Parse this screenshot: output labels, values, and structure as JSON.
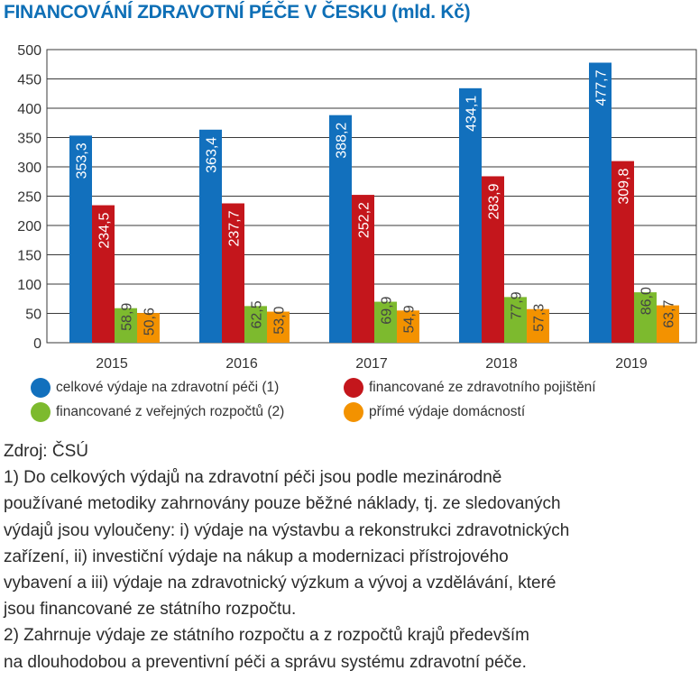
{
  "chart_data": {
    "type": "bar",
    "title": "FINANCOVÁNÍ ZDRAVOTNÍ PÉČE V ČESKU (mld. Kč)",
    "categories": [
      "2015",
      "2016",
      "2017",
      "2018",
      "2019"
    ],
    "series": [
      {
        "name": "celkové výdaje na zdravotní péči (1)",
        "color": "#1270bd",
        "values": [
          353.3,
          363.4,
          388.2,
          434.1,
          477.7
        ],
        "labels": [
          "353,3",
          "363,4",
          "388,2",
          "434,1",
          "477,7"
        ]
      },
      {
        "name": "financované ze zdravotního pojištění",
        "color": "#c4161c",
        "values": [
          234.5,
          237.7,
          252.2,
          283.9,
          309.8
        ],
        "labels": [
          "234,5",
          "237,7",
          "252,2",
          "283,9",
          "309,8"
        ]
      },
      {
        "name": "financované z veřejných rozpočtů (2)",
        "color": "#7dba2e",
        "values": [
          58.9,
          62.5,
          69.9,
          77.9,
          86.0
        ],
        "labels": [
          "58,9",
          "62,5",
          "69,9",
          "77,9",
          "86,0"
        ]
      },
      {
        "name": "přímé výdaje domácností",
        "color": "#f39200",
        "values": [
          50.6,
          53.0,
          54.9,
          57.3,
          63.7
        ],
        "labels": [
          "50,6",
          "53,0",
          "54,9",
          "57,3",
          "63,7"
        ]
      }
    ],
    "ylim": [
      0,
      500
    ],
    "yticks": [
      "0",
      "50",
      "100",
      "150",
      "200",
      "250",
      "300",
      "350",
      "400",
      "450",
      "500"
    ],
    "grid": true,
    "legend_position": "bottom"
  },
  "notes": {
    "source": "Zdroj: ČSÚ",
    "lines": [
      "1) Do celkových výdajů na zdravotní péči jsou podle mezinárodně",
      "používané metodiky zahrnovány pouze běžné náklady, tj. ze sledovaných",
      "výdajů jsou vyloučeny: i) výdaje na výstavbu a rekonstrukci zdravotnických",
      "zařízení, ii) investiční výdaje na nákup a modernizaci přístrojového",
      "vybavení a iii) výdaje na zdravotnický výzkum a vývoj a vzdělávání, které",
      "jsou financované ze státního rozpočtu.",
      "2) Zahrnuje výdaje ze státního rozpočtu a z rozpočtů krajů především",
      "na dlouhodobou a preventivní péči a správu systému zdravotní péče."
    ]
  }
}
